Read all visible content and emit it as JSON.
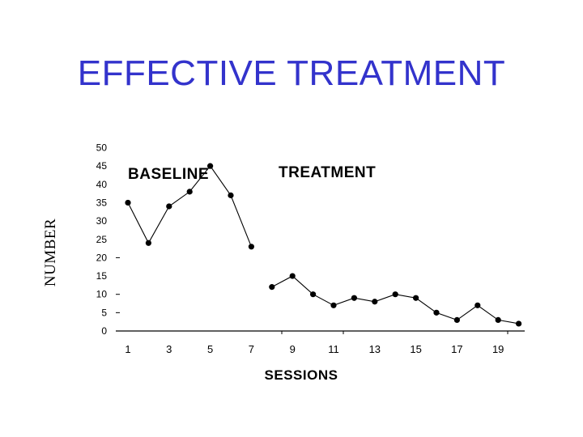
{
  "slide": {
    "title": "EFFECTIVE TREATMENT"
  },
  "chart_data": {
    "type": "line",
    "title": "",
    "xlabel": "SESSIONS",
    "ylabel": "NUMBER",
    "ylim": [
      0,
      50
    ],
    "xlim": [
      1,
      20
    ],
    "yticks": [
      0,
      5,
      10,
      15,
      20,
      25,
      30,
      35,
      40,
      45,
      50
    ],
    "xticks": [
      "1",
      "3",
      "5",
      "7",
      "9",
      "11",
      "13",
      "15",
      "17",
      "19"
    ],
    "phase_labels": [
      "BASELINE",
      "TREATMENT"
    ],
    "grid": false,
    "series": [
      {
        "name": "BASELINE",
        "x": [
          1,
          2,
          3,
          4,
          5,
          6,
          7
        ],
        "values": [
          35,
          24,
          34,
          38,
          45,
          37,
          23
        ]
      },
      {
        "name": "TREATMENT",
        "x": [
          8,
          9,
          10,
          11,
          12,
          13,
          14,
          15,
          16,
          17,
          18,
          19,
          20
        ],
        "values": [
          12,
          15,
          10,
          7,
          9,
          8,
          10,
          9,
          5,
          3,
          7,
          3,
          2
        ]
      }
    ]
  }
}
